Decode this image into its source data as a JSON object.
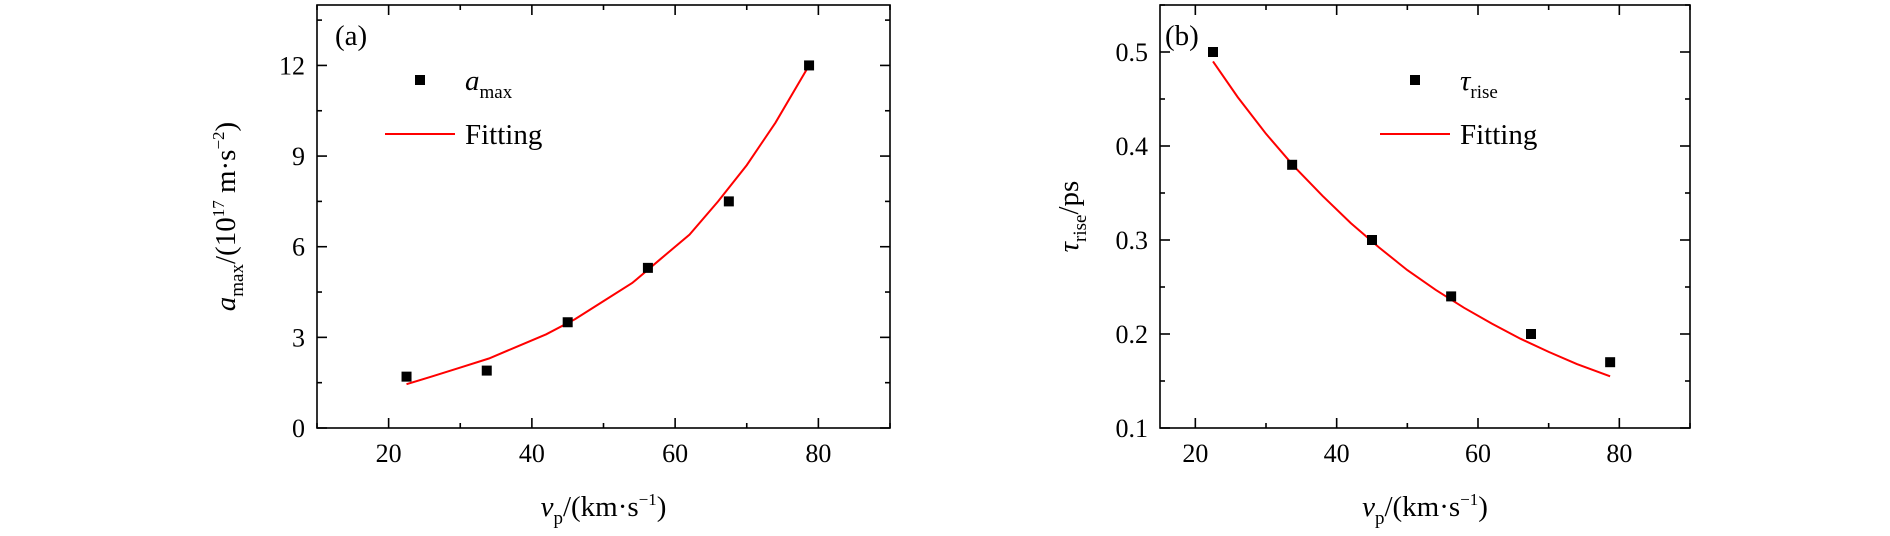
{
  "chart_data": [
    {
      "type": "scatter",
      "panel_label": "(a)",
      "xlim": [
        10,
        90
      ],
      "ylim": [
        0,
        14
      ],
      "xticks": [
        20,
        40,
        60,
        80
      ],
      "yticks": [
        0,
        3,
        6,
        9,
        12
      ],
      "xlabel": {
        "main": "v",
        "sub": "p",
        "rest": "/(km·s",
        "sup": "−1",
        "end": ")"
      },
      "ylabel": {
        "main": "a",
        "sub": "max",
        "rest": "/(10",
        "sup": "17",
        "rest2": " m·s",
        "sup2": "−2",
        "end": ")"
      },
      "grid": false,
      "legend_position": "top-left",
      "series": [
        {
          "name": {
            "main": "a",
            "sub": "max"
          },
          "kind": "points",
          "x": [
            22.5,
            33.7,
            45.0,
            56.2,
            67.5,
            78.7
          ],
          "y": [
            1.7,
            1.9,
            3.5,
            5.3,
            7.5,
            12.0
          ]
        },
        {
          "name": "Fitting",
          "kind": "line",
          "color": "#ff0000",
          "x": [
            22.5,
            26.0,
            30.0,
            34.0,
            38.0,
            42.0,
            46.0,
            50.0,
            54.0,
            58.0,
            62.0,
            66.0,
            70.0,
            74.0,
            78.7
          ],
          "y": [
            1.45,
            1.7,
            2.0,
            2.3,
            2.7,
            3.1,
            3.6,
            4.2,
            4.8,
            5.6,
            6.4,
            7.5,
            8.7,
            10.1,
            12.0
          ]
        }
      ]
    },
    {
      "type": "scatter",
      "panel_label": "(b)",
      "xlim": [
        15,
        90
      ],
      "ylim": [
        0.1,
        0.55
      ],
      "xticks": [
        20,
        40,
        60,
        80
      ],
      "yticks": [
        0.1,
        0.2,
        0.3,
        0.4,
        0.5
      ],
      "xlabel": {
        "main": "v",
        "sub": "p",
        "rest": "/(km·s",
        "sup": "−1",
        "end": ")"
      },
      "ylabel": {
        "main": "τ",
        "sub": "rise",
        "rest": "/ps"
      },
      "grid": false,
      "legend_position": "top-center",
      "series": [
        {
          "name": {
            "main": "τ",
            "sub": "rise"
          },
          "kind": "points",
          "x": [
            22.5,
            33.7,
            45.0,
            56.2,
            67.5,
            78.7
          ],
          "y": [
            0.5,
            0.38,
            0.3,
            0.24,
            0.2,
            0.17
          ]
        },
        {
          "name": "Fitting",
          "kind": "line",
          "color": "#ff0000",
          "x": [
            22.5,
            26.0,
            30.0,
            34.0,
            38.0,
            42.0,
            46.0,
            50.0,
            54.0,
            58.0,
            62.0,
            66.0,
            70.0,
            74.0,
            78.7
          ],
          "y": [
            0.49,
            0.452,
            0.413,
            0.378,
            0.347,
            0.318,
            0.292,
            0.268,
            0.247,
            0.228,
            0.211,
            0.195,
            0.181,
            0.168,
            0.155
          ]
        }
      ]
    }
  ]
}
